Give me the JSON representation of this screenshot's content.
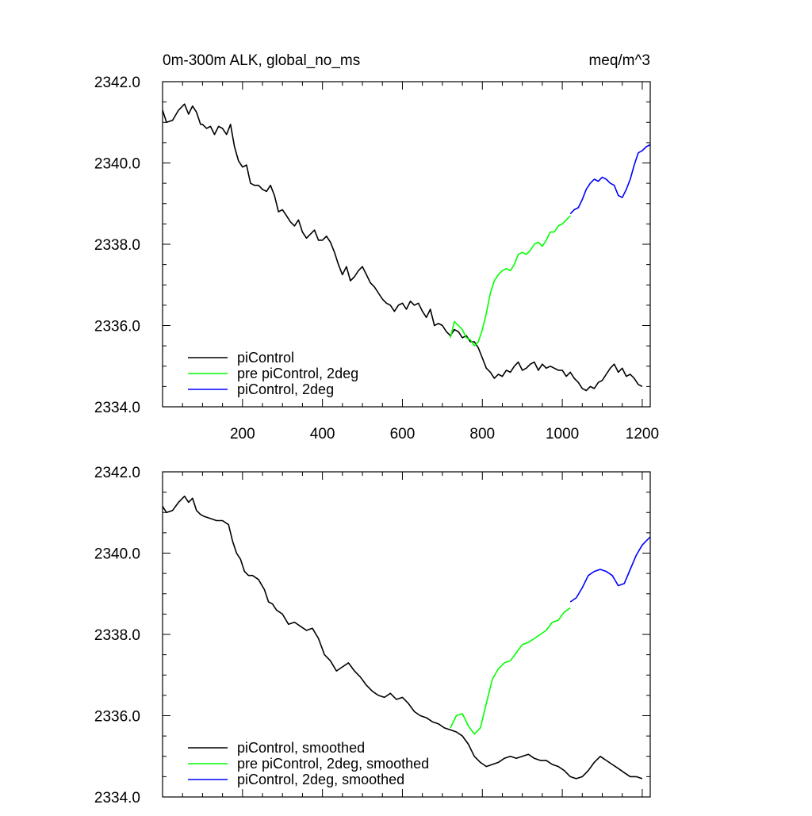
{
  "chart_data": [
    {
      "type": "line",
      "title": "0m-300m ALK, global_no_ms",
      "units": "meq/m^3",
      "xlim": [
        0,
        1220
      ],
      "ylim": [
        2334.0,
        2342.0
      ],
      "x_ticks": [
        200,
        400,
        600,
        800,
        1000,
        1200
      ],
      "x_tick_labels": [
        "200",
        "400",
        "600",
        "800",
        "1000",
        "1200"
      ],
      "y_ticks": [
        2334.0,
        2336.0,
        2338.0,
        2340.0,
        2342.0
      ],
      "y_tick_labels": [
        "2334.0",
        "2336.0",
        "2338.0",
        "2340.0",
        "2342.0"
      ],
      "grid": false,
      "legend_position": "bottom-left",
      "series": [
        {
          "name": "piControl",
          "color": "#000000",
          "x": [
            0,
            10,
            25,
            40,
            55,
            65,
            75,
            85,
            95,
            100,
            110,
            120,
            130,
            140,
            150,
            160,
            170,
            180,
            190,
            200,
            210,
            220,
            230,
            240,
            250,
            260,
            270,
            280,
            290,
            300,
            310,
            320,
            330,
            340,
            350,
            360,
            370,
            380,
            390,
            400,
            410,
            420,
            430,
            440,
            450,
            460,
            470,
            480,
            490,
            500,
            510,
            520,
            530,
            540,
            550,
            560,
            570,
            580,
            590,
            600,
            610,
            620,
            630,
            640,
            650,
            660,
            670,
            680,
            690,
            700,
            710,
            720,
            730,
            740,
            750,
            760,
            770,
            780,
            790,
            800,
            810,
            820,
            830,
            840,
            850,
            860,
            870,
            880,
            890,
            900,
            910,
            920,
            930,
            940,
            950,
            960,
            970,
            980,
            990,
            1000,
            1010,
            1020,
            1030,
            1040,
            1050,
            1060,
            1070,
            1080,
            1090,
            1100,
            1110,
            1120,
            1130,
            1140,
            1150,
            1160,
            1170,
            1180,
            1190,
            1200
          ],
          "y": [
            2341.3,
            2341.0,
            2341.05,
            2341.3,
            2341.45,
            2341.2,
            2341.4,
            2341.25,
            2340.95,
            2340.95,
            2340.85,
            2340.9,
            2340.7,
            2340.9,
            2340.85,
            2340.7,
            2340.95,
            2340.4,
            2340.05,
            2339.9,
            2339.95,
            2339.5,
            2339.45,
            2339.45,
            2339.35,
            2339.3,
            2339.45,
            2339.2,
            2338.8,
            2338.85,
            2338.7,
            2338.55,
            2338.45,
            2338.6,
            2338.3,
            2338.15,
            2338.25,
            2338.35,
            2338.1,
            2338.1,
            2338.2,
            2338.05,
            2337.8,
            2337.5,
            2337.25,
            2337.45,
            2337.1,
            2337.2,
            2337.35,
            2337.45,
            2337.25,
            2337.05,
            2336.95,
            2336.8,
            2336.65,
            2336.55,
            2336.5,
            2336.35,
            2336.5,
            2336.55,
            2336.4,
            2336.6,
            2336.5,
            2336.55,
            2336.35,
            2336.2,
            2336.4,
            2336.0,
            2336.05,
            2336.0,
            2335.85,
            2335.75,
            2335.9,
            2335.85,
            2335.7,
            2335.75,
            2335.6,
            2335.6,
            2335.45,
            2335.2,
            2334.95,
            2334.85,
            2334.7,
            2334.8,
            2334.75,
            2334.9,
            2334.85,
            2335.0,
            2335.1,
            2334.9,
            2334.95,
            2335.05,
            2335.1,
            2334.9,
            2335.05,
            2334.95,
            2335.0,
            2334.95,
            2334.9,
            2334.9,
            2334.75,
            2334.85,
            2334.7,
            2334.6,
            2334.45,
            2334.4,
            2334.5,
            2334.45,
            2334.6,
            2334.65,
            2334.8,
            2334.95,
            2335.05,
            2334.85,
            2334.95,
            2334.75,
            2334.8,
            2334.7,
            2334.55,
            2334.5
          ]
        },
        {
          "name": "pre piControl, 2deg",
          "color": "#00ff00",
          "x": [
            720,
            730,
            740,
            750,
            760,
            770,
            780,
            790,
            800,
            810,
            820,
            830,
            840,
            850,
            860,
            870,
            880,
            890,
            900,
            910,
            920,
            930,
            940,
            950,
            960,
            970,
            980,
            990,
            1000,
            1010,
            1020
          ],
          "y": [
            2335.7,
            2336.1,
            2336.0,
            2335.9,
            2335.7,
            2335.65,
            2335.5,
            2335.6,
            2335.9,
            2336.3,
            2336.8,
            2337.1,
            2337.25,
            2337.35,
            2337.4,
            2337.35,
            2337.5,
            2337.75,
            2337.8,
            2337.75,
            2337.85,
            2338.0,
            2338.05,
            2337.95,
            2338.1,
            2338.3,
            2338.3,
            2338.45,
            2338.5,
            2338.6,
            2338.7
          ]
        },
        {
          "name": "piControl, 2deg",
          "color": "#0000ff",
          "x": [
            1020,
            1030,
            1040,
            1050,
            1060,
            1070,
            1080,
            1090,
            1100,
            1110,
            1120,
            1130,
            1140,
            1150,
            1160,
            1170,
            1180,
            1190,
            1200,
            1210,
            1220
          ],
          "y": [
            2338.75,
            2338.85,
            2338.9,
            2339.1,
            2339.35,
            2339.5,
            2339.6,
            2339.55,
            2339.65,
            2339.6,
            2339.5,
            2339.45,
            2339.2,
            2339.15,
            2339.35,
            2339.6,
            2339.95,
            2340.25,
            2340.3,
            2340.4,
            2340.45
          ]
        }
      ]
    },
    {
      "type": "line",
      "xlim": [
        0,
        1220
      ],
      "ylim": [
        2334.0,
        2342.0
      ],
      "x_ticks": [
        200,
        400,
        600,
        800,
        1000,
        1200
      ],
      "y_ticks": [
        2334.0,
        2336.0,
        2338.0,
        2340.0,
        2342.0
      ],
      "y_tick_labels": [
        "2334.0",
        "2336.0",
        "2338.0",
        "2340.0",
        "2342.0"
      ],
      "grid": false,
      "legend_position": "bottom-left",
      "series": [
        {
          "name": "piControl, smoothed",
          "color": "#000000",
          "x": [
            0,
            10,
            25,
            40,
            55,
            65,
            75,
            85,
            95,
            105,
            120,
            135,
            150,
            165,
            175,
            185,
            195,
            205,
            215,
            225,
            240,
            255,
            265,
            275,
            285,
            300,
            315,
            330,
            345,
            360,
            375,
            390,
            405,
            420,
            435,
            450,
            465,
            480,
            495,
            510,
            525,
            540,
            555,
            570,
            585,
            600,
            615,
            630,
            645,
            660,
            675,
            690,
            705,
            720,
            735,
            750,
            765,
            780,
            795,
            810,
            825,
            840,
            855,
            870,
            885,
            900,
            915,
            930,
            945,
            960,
            975,
            990,
            1005,
            1020,
            1035,
            1050,
            1065,
            1080,
            1095,
            1110,
            1125,
            1140,
            1155,
            1170,
            1185,
            1200
          ],
          "y": [
            2341.15,
            2341.0,
            2341.05,
            2341.25,
            2341.4,
            2341.25,
            2341.35,
            2341.05,
            2340.95,
            2340.9,
            2340.85,
            2340.8,
            2340.8,
            2340.7,
            2340.3,
            2340.0,
            2339.85,
            2339.55,
            2339.45,
            2339.45,
            2339.35,
            2339.1,
            2338.8,
            2338.75,
            2338.6,
            2338.5,
            2338.25,
            2338.3,
            2338.2,
            2338.1,
            2338.15,
            2337.9,
            2337.5,
            2337.35,
            2337.1,
            2337.2,
            2337.3,
            2337.1,
            2336.95,
            2336.75,
            2336.6,
            2336.5,
            2336.45,
            2336.55,
            2336.4,
            2336.45,
            2336.3,
            2336.1,
            2336.0,
            2335.95,
            2335.85,
            2335.8,
            2335.7,
            2335.65,
            2335.6,
            2335.5,
            2335.3,
            2335.0,
            2334.85,
            2334.75,
            2334.8,
            2334.85,
            2334.95,
            2335.0,
            2334.95,
            2335.0,
            2335.05,
            2334.95,
            2334.9,
            2334.9,
            2334.8,
            2334.75,
            2334.65,
            2334.5,
            2334.45,
            2334.5,
            2334.65,
            2334.85,
            2335.0,
            2334.9,
            2334.8,
            2334.7,
            2334.6,
            2334.5,
            2334.5,
            2334.45
          ]
        },
        {
          "name": "pre piControl, 2deg, smoothed",
          "color": "#00ff00",
          "x": [
            720,
            735,
            750,
            765,
            780,
            795,
            810,
            825,
            840,
            855,
            870,
            885,
            900,
            915,
            930,
            945,
            960,
            975,
            990,
            1005,
            1020
          ],
          "y": [
            2335.7,
            2336.0,
            2336.05,
            2335.75,
            2335.55,
            2335.7,
            2336.3,
            2336.9,
            2337.15,
            2337.3,
            2337.35,
            2337.55,
            2337.75,
            2337.8,
            2337.9,
            2338.0,
            2338.1,
            2338.3,
            2338.35,
            2338.55,
            2338.65
          ]
        },
        {
          "name": "piControl, 2deg, smoothed",
          "color": "#0000ff",
          "x": [
            1020,
            1035,
            1050,
            1065,
            1080,
            1095,
            1110,
            1125,
            1140,
            1155,
            1170,
            1185,
            1200,
            1210,
            1220
          ],
          "y": [
            2338.8,
            2338.9,
            2339.15,
            2339.45,
            2339.55,
            2339.6,
            2339.55,
            2339.45,
            2339.2,
            2339.25,
            2339.6,
            2339.95,
            2340.2,
            2340.3,
            2340.4
          ]
        }
      ]
    }
  ]
}
